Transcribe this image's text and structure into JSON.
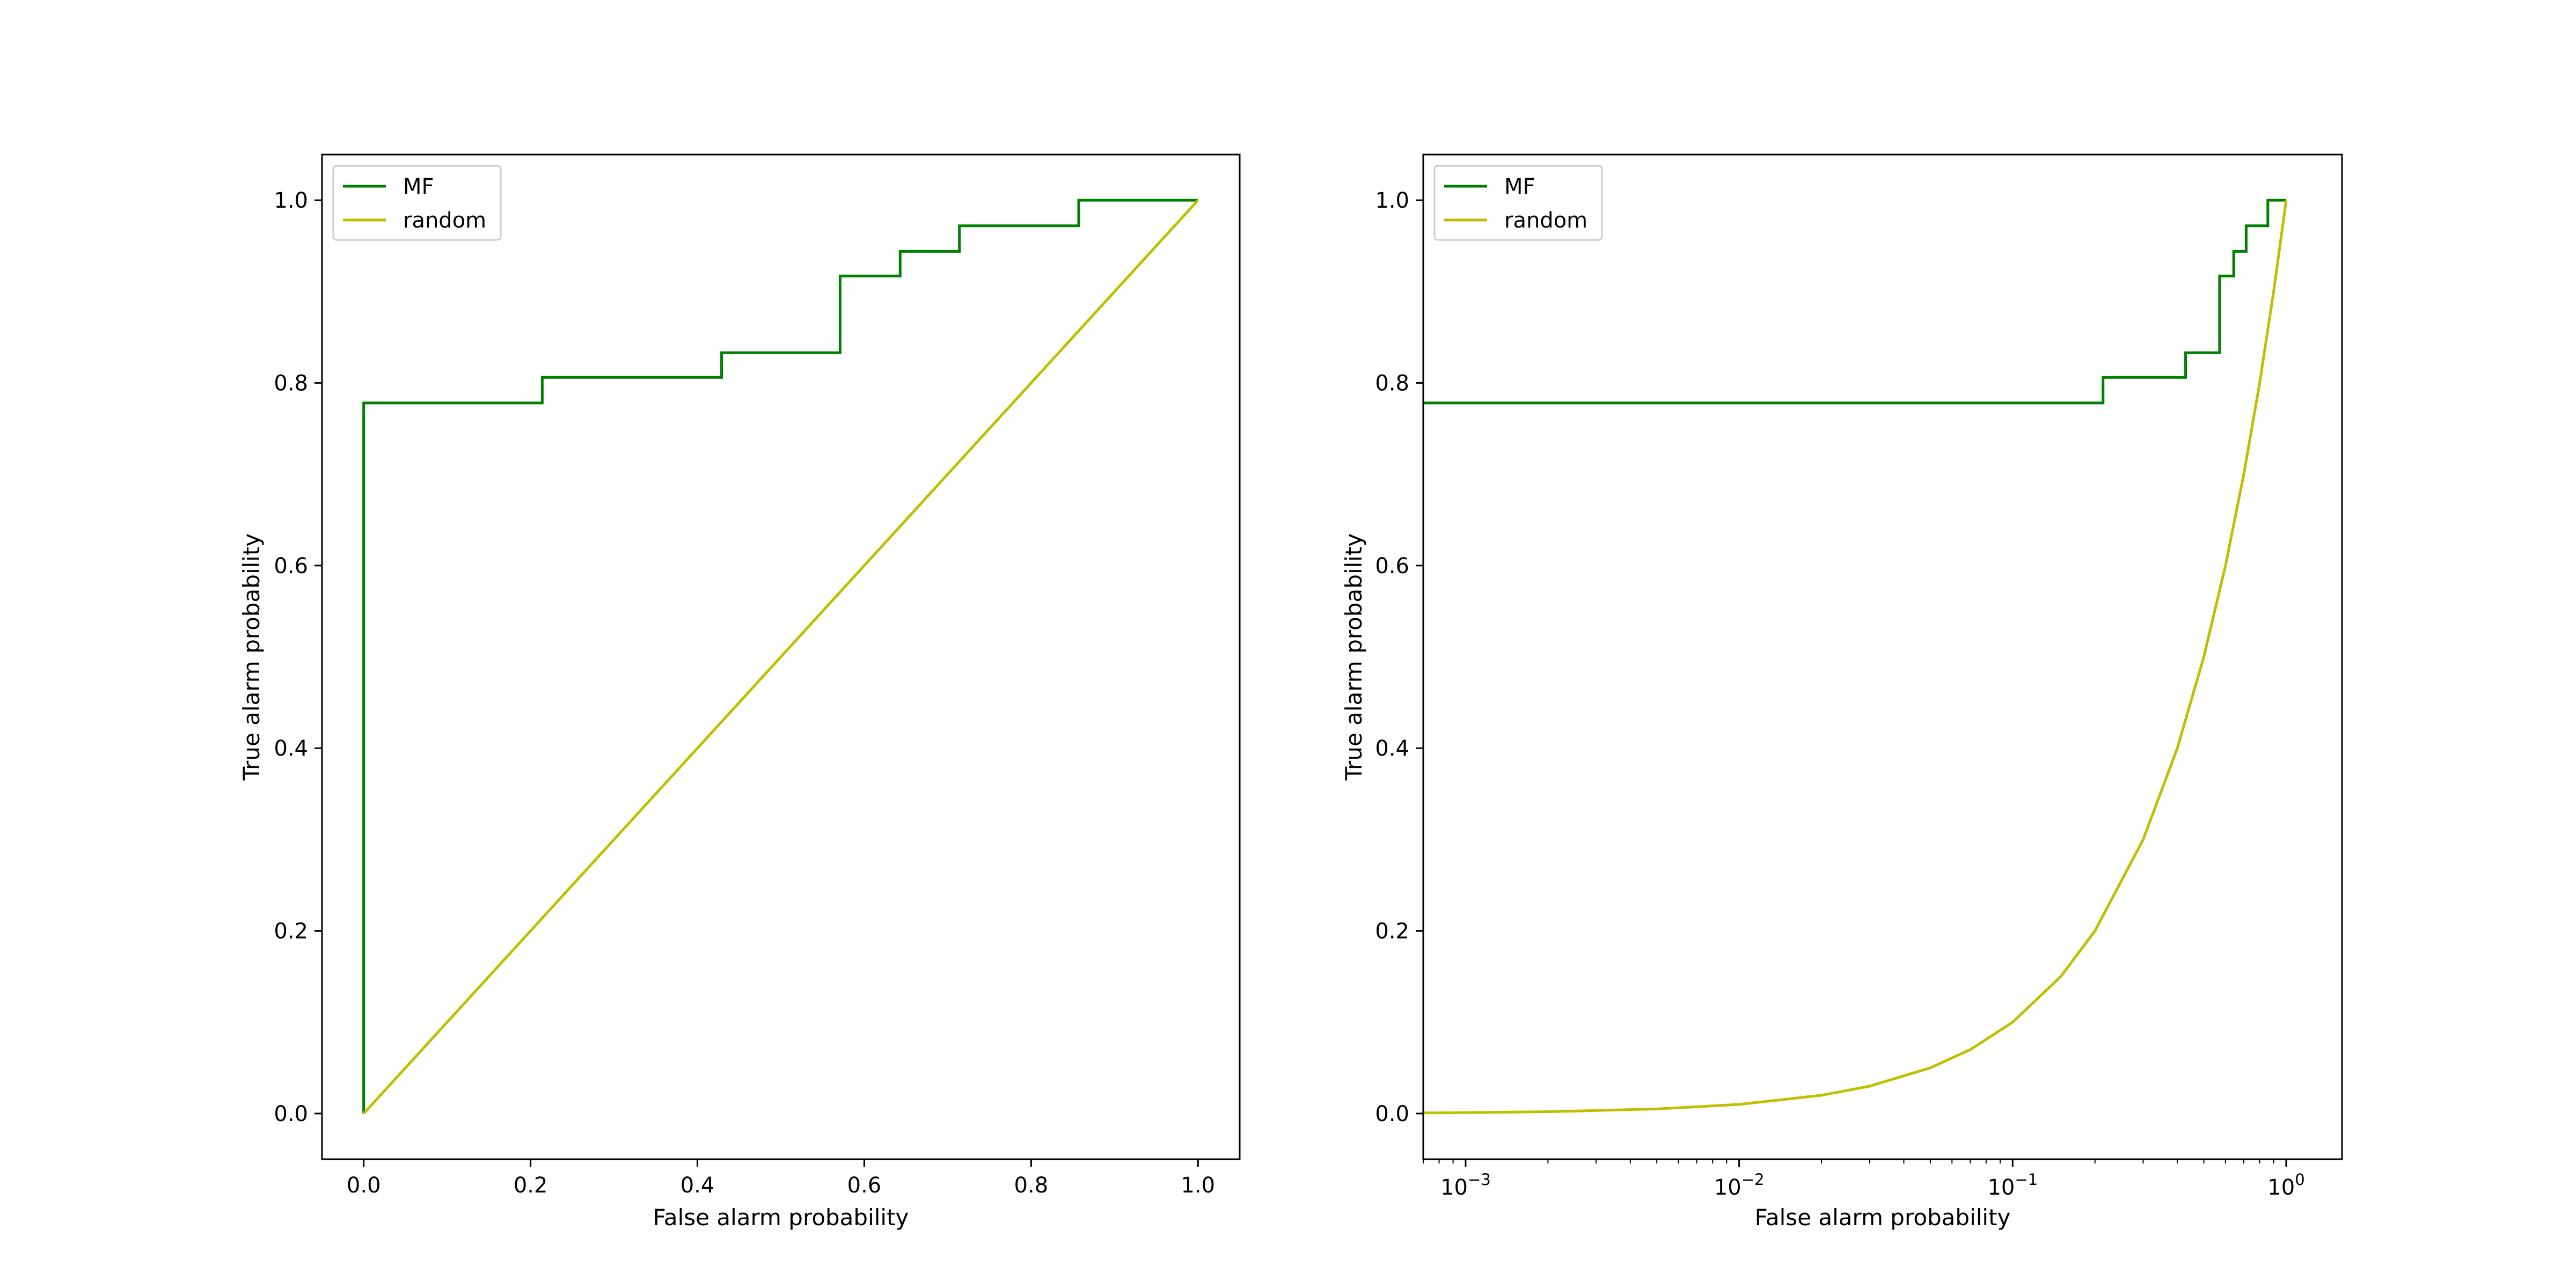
{
  "chart_data": [
    {
      "type": "line",
      "xlabel": "False alarm probability",
      "ylabel": "True alarm probability",
      "xscale": "linear",
      "xlim": [
        -0.05,
        1.05
      ],
      "ylim": [
        -0.05,
        1.05
      ],
      "xticks": [
        0.0,
        0.2,
        0.4,
        0.6,
        0.8,
        1.0
      ],
      "xtick_labels": [
        "0.0",
        "0.2",
        "0.4",
        "0.6",
        "0.8",
        "1.0"
      ],
      "yticks": [
        0.0,
        0.2,
        0.4,
        0.6,
        0.8,
        1.0
      ],
      "ytick_labels": [
        "0.0",
        "0.2",
        "0.4",
        "0.6",
        "0.8",
        "1.0"
      ],
      "grid": false,
      "legend_position": "top-left",
      "series": [
        {
          "name": "MF",
          "color": "#008000",
          "step": true,
          "x": [
            0.0,
            0.0,
            0.214,
            0.214,
            0.429,
            0.429,
            0.571,
            0.571,
            0.643,
            0.643,
            0.714,
            0.714,
            0.857,
            0.857,
            1.0
          ],
          "y": [
            0.0,
            0.778,
            0.778,
            0.806,
            0.806,
            0.833,
            0.833,
            0.917,
            0.917,
            0.944,
            0.944,
            0.972,
            0.972,
            1.0,
            1.0
          ]
        },
        {
          "name": "random",
          "color": "#bfbf00",
          "x": [
            0.0,
            1.0
          ],
          "y": [
            0.0,
            1.0
          ]
        }
      ]
    },
    {
      "type": "line",
      "xlabel": "False alarm probability",
      "ylabel": "True alarm probability",
      "xscale": "log",
      "xlim": [
        0.0007,
        1.6
      ],
      "ylim": [
        -0.05,
        1.05
      ],
      "xticks": [
        0.001,
        0.01,
        0.1,
        1.0
      ],
      "xtick_labels": [
        {
          "base": "10",
          "exp": "−3"
        },
        {
          "base": "10",
          "exp": "−2"
        },
        {
          "base": "10",
          "exp": "−1"
        },
        {
          "base": "10",
          "exp": "0"
        }
      ],
      "yticks": [
        0.0,
        0.2,
        0.4,
        0.6,
        0.8,
        1.0
      ],
      "ytick_labels": [
        "0.0",
        "0.2",
        "0.4",
        "0.6",
        "0.8",
        "1.0"
      ],
      "grid": false,
      "legend_position": "top-left",
      "series": [
        {
          "name": "MF",
          "color": "#008000",
          "step": true,
          "x": [
            0.0007,
            0.214,
            0.214,
            0.429,
            0.429,
            0.571,
            0.571,
            0.643,
            0.643,
            0.714,
            0.714,
            0.857,
            0.857,
            1.0
          ],
          "y": [
            0.778,
            0.778,
            0.806,
            0.806,
            0.833,
            0.833,
            0.917,
            0.917,
            0.944,
            0.944,
            0.972,
            0.972,
            1.0,
            1.0
          ]
        },
        {
          "name": "random",
          "color": "#bfbf00",
          "x": [
            0.0007,
            0.001,
            0.002,
            0.005,
            0.01,
            0.02,
            0.03,
            0.05,
            0.07,
            0.1,
            0.15,
            0.2,
            0.3,
            0.4,
            0.5,
            0.6,
            0.7,
            0.8,
            0.9,
            1.0
          ],
          "y": [
            0.0007,
            0.001,
            0.002,
            0.005,
            0.01,
            0.02,
            0.03,
            0.05,
            0.07,
            0.1,
            0.15,
            0.2,
            0.3,
            0.4,
            0.5,
            0.6,
            0.7,
            0.8,
            0.9,
            1.0
          ]
        }
      ]
    }
  ]
}
